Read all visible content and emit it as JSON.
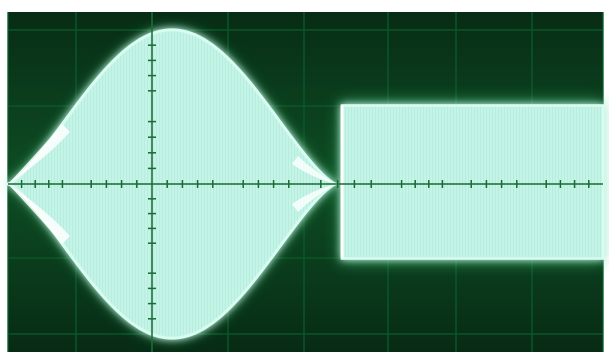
{
  "scope": {
    "graticule": {
      "major_columns": 8,
      "major_rows": 4,
      "minor_per_major": 5
    },
    "colors": {
      "background": "#0a3a1c",
      "trace_core": "#d8fbf2",
      "trace_body": "#b6eee0",
      "trace_glow": "#3fcf7e",
      "grid": "#0b5a2a"
    },
    "left_signal": {
      "shape": "amplitude-modulated envelope",
      "peak_amplitude_fraction": 0.94,
      "lobes": 1
    },
    "right_signal": {
      "shape": "constant-amplitude carrier",
      "amplitude_fraction": 0.48
    }
  }
}
